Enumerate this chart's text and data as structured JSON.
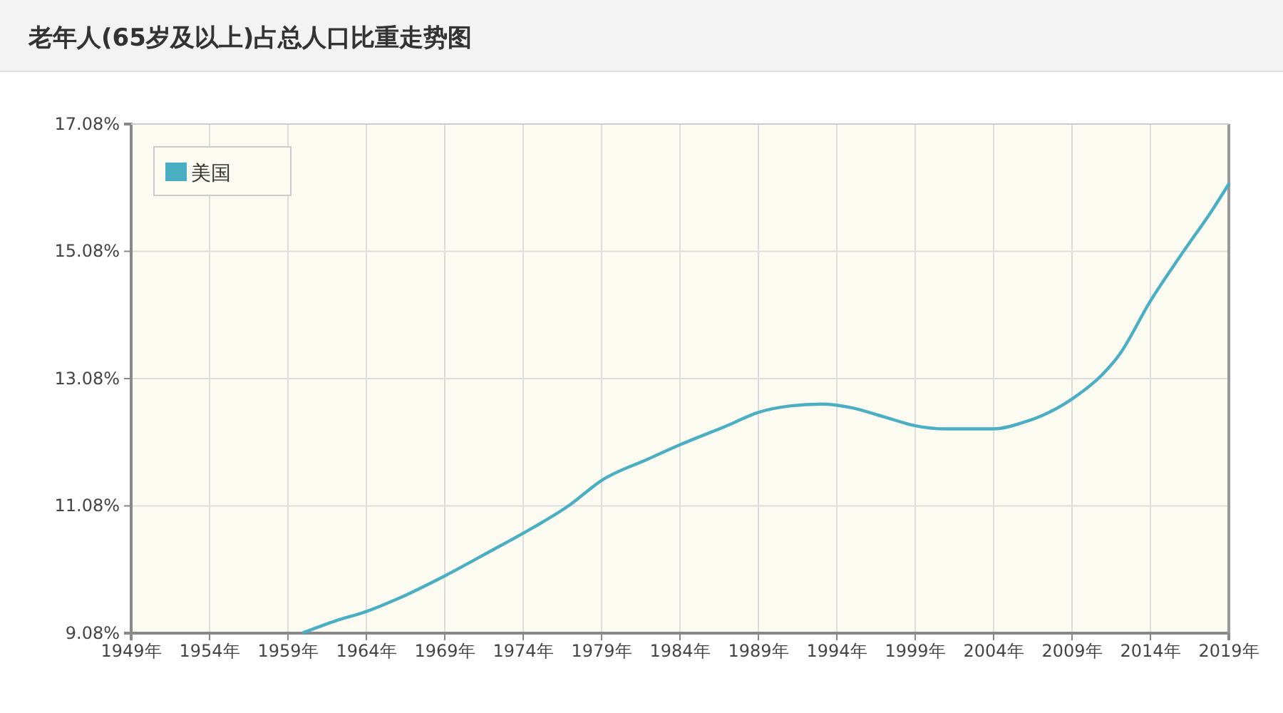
{
  "chart_data": {
    "type": "line",
    "title": "老年人(65岁及以上)占总人口比重走势图",
    "x": [
      1960,
      1962,
      1964,
      1966,
      1969,
      1972,
      1974,
      1977,
      1979,
      1982,
      1984,
      1987,
      1989,
      1991,
      1993,
      1995,
      1997,
      1999,
      2001,
      2004,
      2006,
      2007,
      2009,
      2011,
      2012,
      2014,
      2016,
      2018,
      2019
    ],
    "series": [
      {
        "name": "美国",
        "color": "#4bafc4",
        "values": [
          9.09,
          9.27,
          9.42,
          9.62,
          9.98,
          10.38,
          10.65,
          11.1,
          11.48,
          11.82,
          12.04,
          12.34,
          12.55,
          12.65,
          12.68,
          12.62,
          12.48,
          12.34,
          12.29,
          12.29,
          12.4,
          12.49,
          12.76,
          13.16,
          13.45,
          14.3,
          15.04,
          15.75,
          16.14
        ]
      }
    ],
    "xlim": [
      1949,
      2019
    ],
    "xticks": [
      {
        "value": 1949,
        "label": "1949年"
      },
      {
        "value": 1954,
        "label": "1954年"
      },
      {
        "value": 1959,
        "label": "1959年"
      },
      {
        "value": 1964,
        "label": "1964年"
      },
      {
        "value": 1969,
        "label": "1969年"
      },
      {
        "value": 1974,
        "label": "1974年"
      },
      {
        "value": 1979,
        "label": "1979年"
      },
      {
        "value": 1984,
        "label": "1984年"
      },
      {
        "value": 1989,
        "label": "1989年"
      },
      {
        "value": 1994,
        "label": "1994年"
      },
      {
        "value": 1999,
        "label": "1999年"
      },
      {
        "value": 2004,
        "label": "2004年"
      },
      {
        "value": 2009,
        "label": "2009年"
      },
      {
        "value": 2014,
        "label": "2014年"
      },
      {
        "value": 2019,
        "label": "2019年"
      }
    ],
    "ylim": [
      9.08,
      17.08
    ],
    "yticks": [
      {
        "value": 9.08,
        "label": "9.08%"
      },
      {
        "value": 11.08,
        "label": "11.08%"
      },
      {
        "value": 13.08,
        "label": "13.08%"
      },
      {
        "value": 15.08,
        "label": "15.08%"
      },
      {
        "value": 17.08,
        "label": "17.08%"
      }
    ],
    "grid": true,
    "legend": "top left",
    "marker": "none",
    "line_style": "solid"
  }
}
